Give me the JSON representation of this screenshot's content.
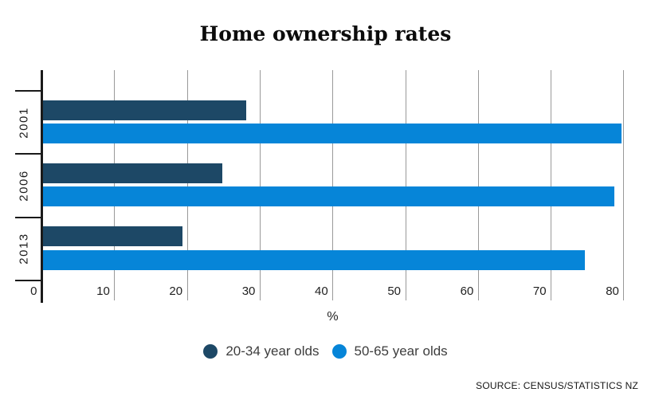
{
  "title": "Home ownership rates",
  "source": "SOURCE: CENSUS/STATISTICS NZ",
  "chart_data": {
    "type": "bar",
    "orientation": "horizontal",
    "title": "Home ownership rates",
    "categories": [
      "2001",
      "2006",
      "2013"
    ],
    "series": [
      {
        "name": "20-34 year olds",
        "color": "#1d4866",
        "values": [
          28.1,
          24.8,
          19.3
        ]
      },
      {
        "name": "50-65 year olds",
        "color": "#0685d8",
        "values": [
          79.7,
          78.7,
          74.6
        ]
      }
    ],
    "xlabel": "%",
    "x_ticks": [
      0,
      10,
      20,
      30,
      40,
      50,
      60,
      70,
      80
    ],
    "xlim": [
      0,
      80
    ],
    "grid": "vertical gray gridlines, bars drawn over gridlines",
    "legend_position": "bottom-center",
    "source": "SOURCE: CENSUS/STATISTICS NZ",
    "colors": {
      "bar_dark": "#1d4866",
      "bar_blue": "#0685d8",
      "gridline": "#999999",
      "axis": "#1a1a1a",
      "background": "#ffffff"
    }
  }
}
